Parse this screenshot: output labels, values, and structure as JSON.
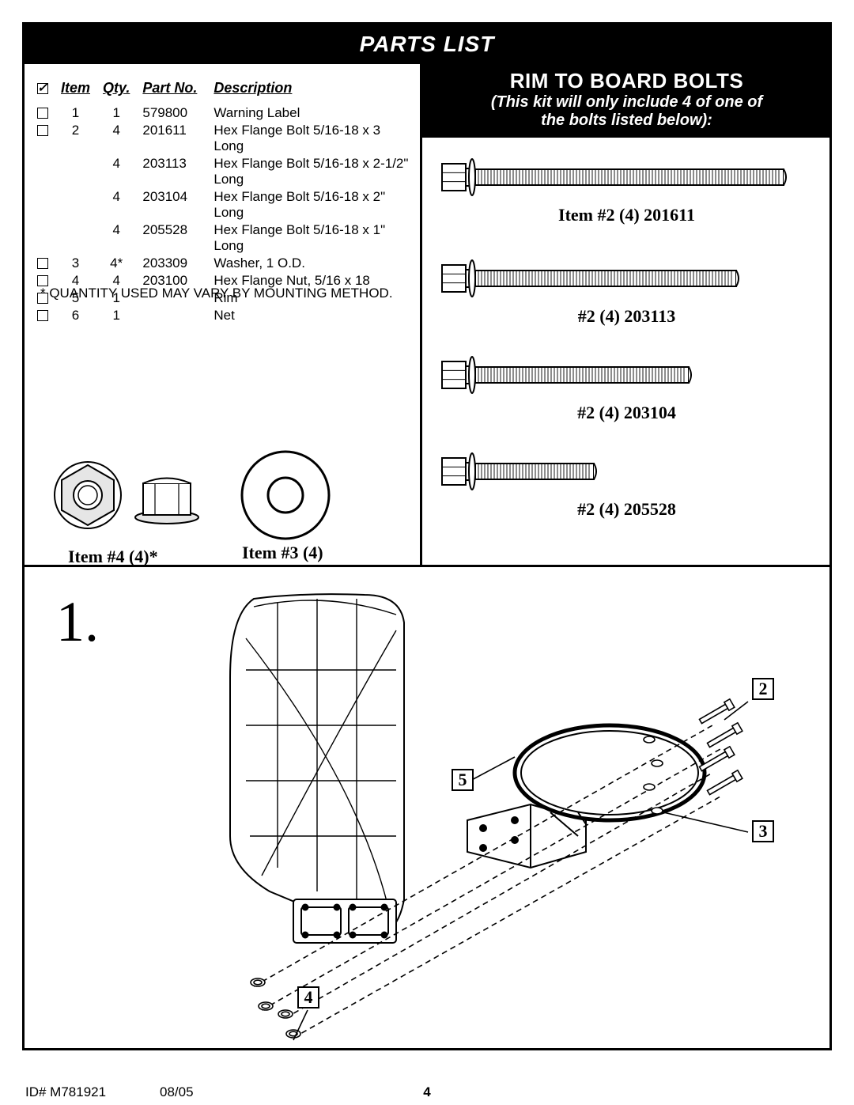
{
  "title": "PARTS LIST",
  "table": {
    "headers": {
      "check": "✓",
      "item": "Item",
      "qty": "Qty.",
      "part": "Part No.",
      "desc": "Description"
    },
    "rows": [
      {
        "check": true,
        "show_check": true,
        "item": "1",
        "qty": "1",
        "part": "579800",
        "desc": "Warning Label"
      },
      {
        "check": false,
        "show_check": true,
        "item": "2",
        "qty": "4",
        "part": "201611",
        "desc": "Hex Flange Bolt 5/16-18 x 3 Long"
      },
      {
        "check": false,
        "show_check": false,
        "item": "",
        "qty": "4",
        "part": "203113",
        "desc": "Hex Flange Bolt 5/16-18 x 2-1/2\" Long"
      },
      {
        "check": false,
        "show_check": false,
        "item": "",
        "qty": "4",
        "part": "203104",
        "desc": "Hex Flange Bolt 5/16-18 x 2\" Long"
      },
      {
        "check": false,
        "show_check": false,
        "item": "",
        "qty": "4",
        "part": "205528",
        "desc": "Hex Flange Bolt 5/16-18 x 1\" Long"
      },
      {
        "check": false,
        "show_check": true,
        "item": "3",
        "qty": "4*",
        "part": "203309",
        "desc": "Washer, 1 O.D."
      },
      {
        "check": false,
        "show_check": true,
        "item": "4",
        "qty": "4",
        "part": "203100",
        "desc": "Hex Flange Nut, 5/16 x 18"
      },
      {
        "check": false,
        "show_check": true,
        "item": "5",
        "qty": "1",
        "part": "",
        "desc": "Rim"
      },
      {
        "check": false,
        "show_check": true,
        "item": "6",
        "qty": "1",
        "part": "",
        "desc": "Net"
      }
    ]
  },
  "footnote": "* QUANTITY USED MAY VARY BY MOUNTING METHOD.",
  "item4_label": "Item #4 (4)*",
  "item3_label": "Item #3 (4)",
  "rim_header": {
    "line1": "RIM TO BOARD BOLTS",
    "line2a": "(This kit will only include 4 of one of",
    "line2b": "the bolts listed below):"
  },
  "bolts": [
    {
      "label": "Item #2 (4) 201611",
      "length": 390
    },
    {
      "label": "#2 (4) 203113",
      "length": 330
    },
    {
      "label": "#2 (4) 203104",
      "length": 270
    },
    {
      "label": "#2 (4) 205528",
      "length": 150
    }
  ],
  "step_num": "1.",
  "callouts": {
    "c2": "2",
    "c3": "3",
    "c4": "4",
    "c5": "5"
  },
  "footer": {
    "id": "ID#  M781921",
    "date": "08/05",
    "page": "4"
  },
  "colors": {
    "black": "#000000",
    "white": "#ffffff",
    "gray_light": "#e6e6e6",
    "gray_mid": "#cfcfcf"
  }
}
